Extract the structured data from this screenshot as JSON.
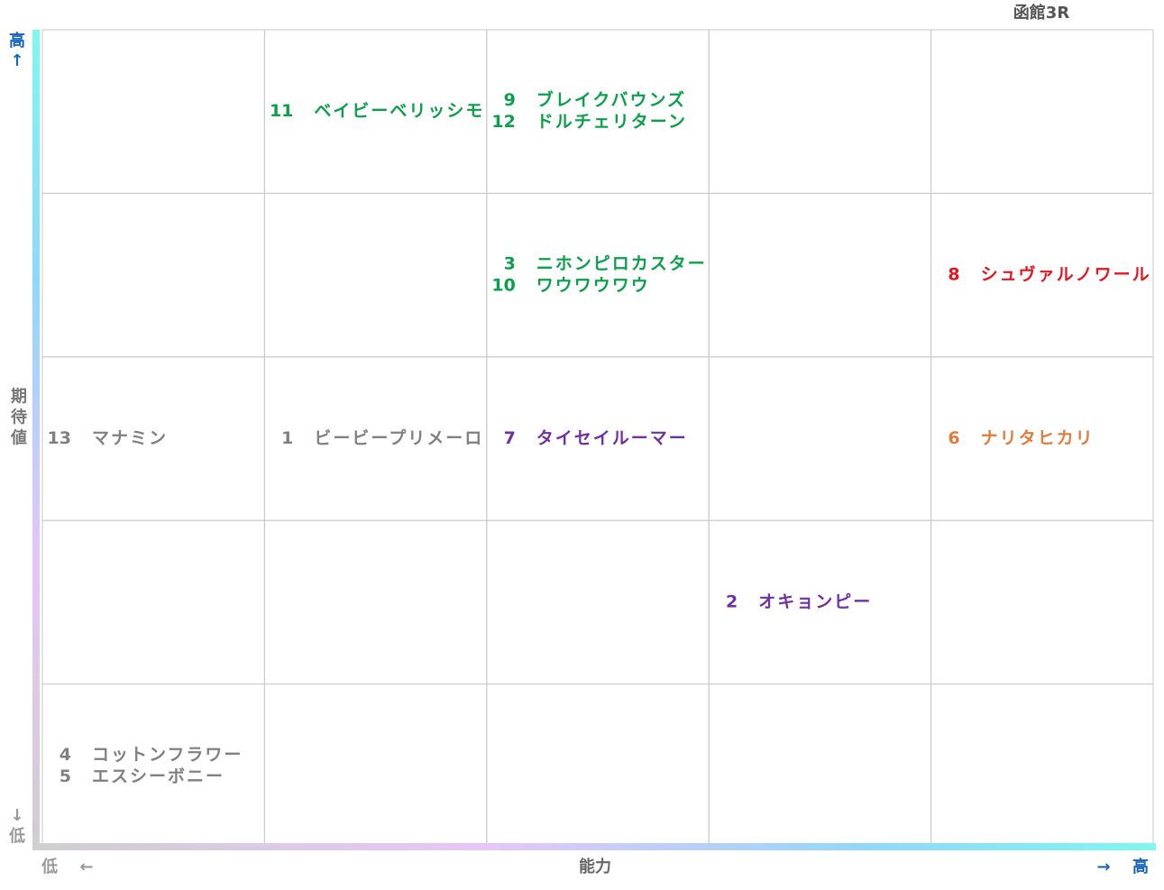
{
  "title": "函館3R",
  "y_axis": {
    "label": "期待値",
    "high": "高",
    "low": "低",
    "up_arrow": "↑",
    "down_arrow": "↓"
  },
  "x_axis": {
    "label": "能力",
    "low": "低",
    "high": "高",
    "left_arrow": "←",
    "right_arrow": "→"
  },
  "grid": {
    "rows": 5,
    "columns": 5
  },
  "cells": [
    {
      "row": 0,
      "column": 1,
      "entries": [
        {
          "number": 11,
          "name": "ベイビーベリッシモ",
          "color": "#0aa04a"
        }
      ]
    },
    {
      "row": 0,
      "column": 2,
      "entries": [
        {
          "number": 9,
          "name": "ブレイクバウンズ",
          "color": "#0aa04a"
        },
        {
          "number": 12,
          "name": "ドルチェリターン",
          "color": "#0aa04a"
        }
      ]
    },
    {
      "row": 1,
      "column": 2,
      "entries": [
        {
          "number": 3,
          "name": "ニホンピロカスター",
          "color": "#0aa04a"
        },
        {
          "number": 10,
          "name": "ワウワウワウ",
          "color": "#0aa04a"
        }
      ]
    },
    {
      "row": 1,
      "column": 4,
      "entries": [
        {
          "number": 8,
          "name": "シュヴァルノワール",
          "color": "#e8141e"
        }
      ]
    },
    {
      "row": 2,
      "column": 0,
      "entries": [
        {
          "number": 13,
          "name": "マナミン",
          "color": "#808080"
        }
      ]
    },
    {
      "row": 2,
      "column": 1,
      "entries": [
        {
          "number": 1,
          "name": "ビービープリメーロ",
          "color": "#808080"
        }
      ]
    },
    {
      "row": 2,
      "column": 2,
      "entries": [
        {
          "number": 7,
          "name": "タイセイルーマー",
          "color": "#7030a0"
        }
      ]
    },
    {
      "row": 2,
      "column": 4,
      "entries": [
        {
          "number": 6,
          "name": "ナリタヒカリ",
          "color": "#e07b39"
        }
      ]
    },
    {
      "row": 3,
      "column": 3,
      "entries": [
        {
          "number": 2,
          "name": "オキョンピー",
          "color": "#7030a0"
        }
      ]
    },
    {
      "row": 4,
      "column": 0,
      "entries": [
        {
          "number": 4,
          "name": "コットンフラワー",
          "color": "#808080"
        },
        {
          "number": 5,
          "name": "エスシーボニー",
          "color": "#808080"
        }
      ]
    }
  ]
}
